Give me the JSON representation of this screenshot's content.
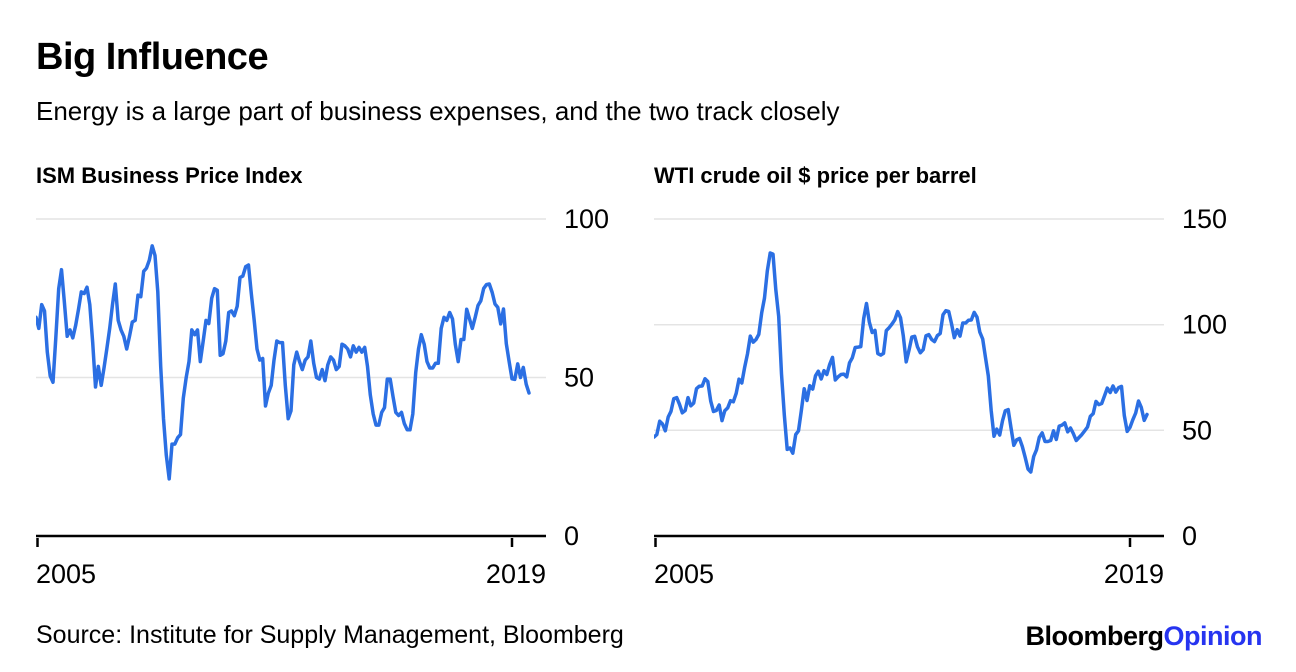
{
  "page": {
    "title": "Big Influence",
    "subtitle": "Energy is a large part of business expenses, and the two track closely"
  },
  "source": {
    "text": "Source: Institute for Supply Management, Bloomberg"
  },
  "brand": {
    "name_black": "Bloomberg",
    "name_blue": "Opinion"
  },
  "colors": {
    "line": "#2b6fe3",
    "grid": "#e4e4e4",
    "axis": "#000000",
    "text": "#000000",
    "brand_blue": "#2634f0"
  },
  "chart_data": [
    {
      "type": "line",
      "title": "ISM Business Price Index",
      "frequency": "monthly",
      "x_start": 2005,
      "x_range": [
        2005,
        2020
      ],
      "x_ticks": [
        2005,
        2019
      ],
      "x_tick_labels": [
        "2005",
        "2019"
      ],
      "ylim": [
        0,
        100
      ],
      "yticks": [
        0,
        50,
        100
      ],
      "grid": "horizontal",
      "legend": "none",
      "values": [
        69,
        65.5,
        73,
        71,
        58,
        50.5,
        48.5,
        62.5,
        78,
        84,
        74,
        63,
        65,
        62.5,
        66.5,
        71.5,
        77,
        76.5,
        78.5,
        73,
        61,
        47,
        53.5,
        47.5,
        53,
        59,
        65.5,
        73,
        79.5,
        68,
        65,
        63,
        59,
        63,
        67.5,
        68,
        76,
        75.5,
        83.5,
        84.5,
        87,
        91.5,
        88.5,
        77,
        53.5,
        37,
        25.5,
        18,
        29,
        29,
        31,
        32,
        43.5,
        50,
        55,
        65,
        63.5,
        65,
        55,
        61.5,
        68,
        67,
        75,
        78,
        77.5,
        57,
        57.5,
        61.5,
        70.5,
        71,
        69.5,
        72.5,
        81.5,
        82,
        85,
        85.5,
        76.5,
        68,
        59,
        55.5,
        56,
        41,
        45,
        47.5,
        55.5,
        61.5,
        61,
        61,
        47.5,
        37,
        39.5,
        54,
        58,
        55,
        52.5,
        55.5,
        56.5,
        61.5,
        54.5,
        50,
        49.5,
        52.5,
        49,
        54,
        56.5,
        55.5,
        52.5,
        53.5,
        60.5,
        60,
        59,
        56.5,
        60,
        58,
        59.5,
        58,
        59.5,
        53.5,
        44.5,
        38.5,
        35,
        35,
        39,
        40.5,
        49.5,
        49.5,
        44,
        39,
        38,
        39,
        35.5,
        33.5,
        33.5,
        38.5,
        51.5,
        59,
        63.5,
        60.5,
        55,
        53,
        53,
        54.5,
        54.5,
        65.5,
        69,
        68,
        70.5,
        68.5,
        60.5,
        55,
        62,
        62,
        71.5,
        68.5,
        65.5,
        69,
        72.7,
        74.2,
        78.1,
        79.3,
        79.5,
        76.8,
        73.2,
        72.1,
        66.9,
        71.6,
        60.7,
        54.9,
        49.6,
        49.4,
        54.3,
        50,
        53.2,
        47.9,
        45.1
      ]
    },
    {
      "type": "line",
      "title": "WTI crude oil $ price per barrel",
      "frequency": "monthly",
      "x_start": 2005,
      "x_range": [
        2005,
        2020
      ],
      "x_ticks": [
        2005,
        2019
      ],
      "x_tick_labels": [
        "2005",
        "2019"
      ],
      "ylim": [
        0,
        150
      ],
      "yticks": [
        0,
        50,
        100,
        150
      ],
      "grid": "horizontal",
      "legend": "none",
      "values": [
        46.8,
        48,
        54.3,
        53,
        49.8,
        56.3,
        59,
        65,
        65.5,
        62.3,
        58.3,
        59.4,
        65.5,
        61.6,
        62.9,
        69.7,
        70.9,
        71,
        74.4,
        73.1,
        63.9,
        58.9,
        59.4,
        62,
        54.6,
        59.3,
        60.6,
        64,
        63.5,
        67.5,
        74.2,
        72.4,
        79.9,
        86.2,
        94.6,
        91.7,
        93,
        95.4,
        105.6,
        112.6,
        125.4,
        133.9,
        133.4,
        116.6,
        103.9,
        76.7,
        57.4,
        41,
        41.7,
        39.2,
        48,
        49.8,
        59.2,
        69.7,
        64.1,
        71.1,
        69.5,
        75.8,
        78,
        74.3,
        78.2,
        76.4,
        81.2,
        84.5,
        73.8,
        75.4,
        76.4,
        76.6,
        75.3,
        81.9,
        84.3,
        89.2,
        89.4,
        89.6,
        102.9,
        110,
        101.3,
        96.3,
        97.3,
        86.3,
        85.6,
        86.4,
        97.2,
        98.6,
        100.3,
        102.3,
        106.2,
        103.3,
        94.7,
        82.4,
        87.9,
        94.1,
        94.5,
        89.5,
        86.7,
        88.2,
        94.8,
        95.3,
        93,
        92,
        94.8,
        95.8,
        104.7,
        106.6,
        106.3,
        100.5,
        93.9,
        97.6,
        94.6,
        100.8,
        100.8,
        102.1,
        102.2,
        105.8,
        103.6,
        96.5,
        93.2,
        84.4,
        75.8,
        59.3,
        47.2,
        50.6,
        47.8,
        54.5,
        59.3,
        59.8,
        51.2,
        42.9,
        45.5,
        46.2,
        42.4,
        37.2,
        31.7,
        30.3,
        37.6,
        40.8,
        46.7,
        48.8,
        44.7,
        44.7,
        45.2,
        49.8,
        45.7,
        52,
        52.5,
        53.5,
        49.3,
        51.1,
        48.5,
        45.2,
        46.6,
        48,
        49.8,
        51.6,
        56.6,
        57.9,
        63.7,
        62.2,
        62.7,
        66.3,
        70,
        67.9,
        71,
        68.1,
        70.2,
        70.8,
        57,
        49.5,
        51.4,
        55,
        58.2,
        63.9,
        60.8,
        54.7,
        57.5
      ]
    }
  ]
}
